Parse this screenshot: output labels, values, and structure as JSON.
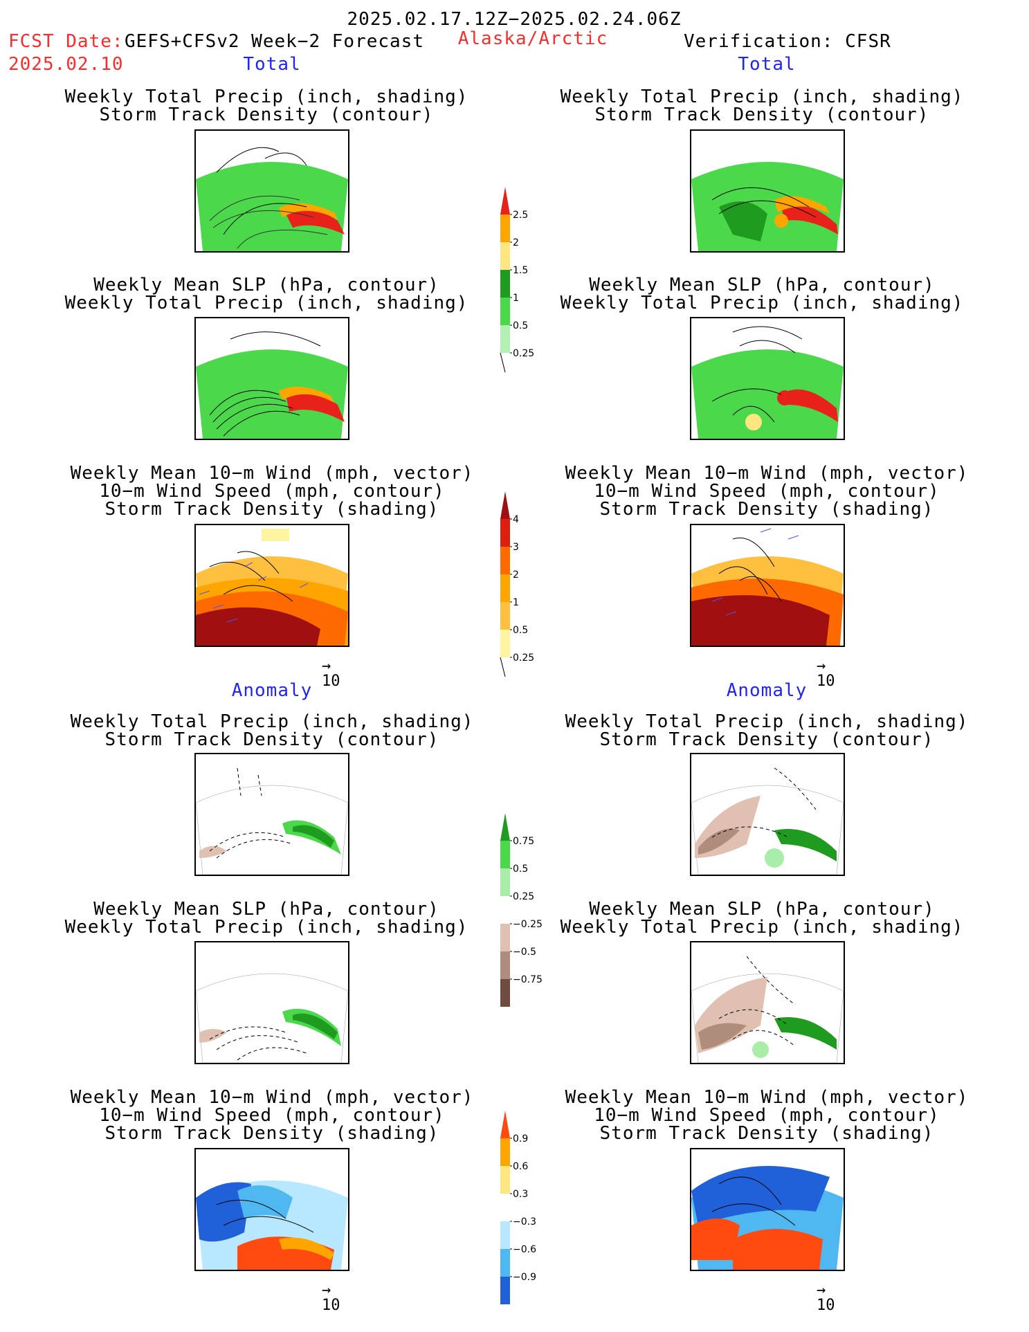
{
  "header": {
    "date_range": "2025.02.17.12Z−2025.02.24.06Z",
    "fcst_label": "FCST Date:",
    "fcst_model": "GEFS+CFSv2 Week−2 Forecast",
    "fcst_date": "2025.02.10",
    "region": "Alaska/Arctic",
    "verification": "Verification: CFSR"
  },
  "sections": {
    "total": "Total",
    "anomaly": "Anomaly"
  },
  "titles": {
    "precip_storm": [
      "Weekly Total Precip (inch, shading)",
      "Storm Track Density (contour)"
    ],
    "slp_precip": [
      "Weekly Mean SLP (hPa, contour)",
      "Weekly Total Precip (inch, shading)"
    ],
    "wind_storm": [
      "Weekly Mean 10−m Wind (mph, vector)",
      "10−m Wind Speed (mph, contour)",
      "Storm Track Density (shading)"
    ]
  },
  "vector_reference": "10",
  "colorbars": [
    {
      "name": "total-precip",
      "labels": [
        "2.5",
        "2",
        "1.5",
        "1",
        "0.5",
        "0.25"
      ],
      "colors": [
        "#e8221a",
        "#ffa500",
        "#ffe680",
        "#1f9b1f",
        "#4bd94b",
        "#b4f0b4"
      ]
    },
    {
      "name": "total-storm-density",
      "labels": [
        "4",
        "3",
        "2",
        "1",
        "0.5",
        "0.25"
      ],
      "colors": [
        "#a01010",
        "#e01e10",
        "#ff6a00",
        "#ffa500",
        "#ffc040",
        "#fff5a0"
      ]
    },
    {
      "name": "anomaly-precip",
      "labels": [
        "0.75",
        "0.5",
        "0.25",
        "−0.25",
        "−0.5",
        "−0.75"
      ],
      "colors": [
        "#1f9b1f",
        "#4bd94b",
        "#a8eea8",
        "#ffffff",
        "#e0c0b0",
        "#b08c7c",
        "#704c40"
      ]
    },
    {
      "name": "anomaly-storm-density",
      "labels": [
        "0.9",
        "0.6",
        "0.3",
        "−0.3",
        "−0.6",
        "−0.9"
      ],
      "colors": [
        "#ff4a10",
        "#ffa500",
        "#ffe680",
        "#ffffff",
        "#b8e8ff",
        "#50b8f0",
        "#2060d8"
      ]
    }
  ]
}
